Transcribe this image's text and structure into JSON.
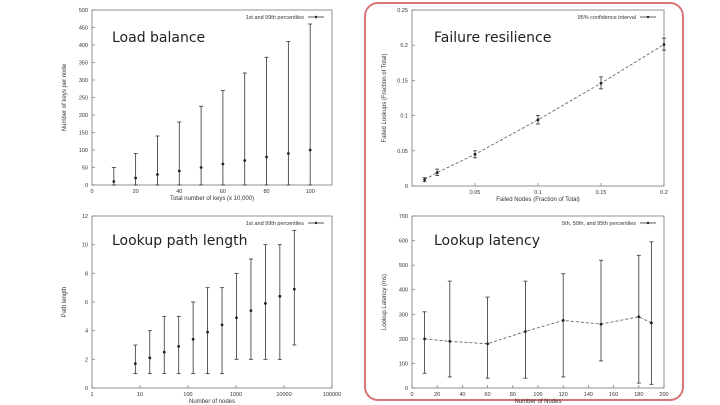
{
  "titles": {
    "load": "Load balance",
    "failure": "Failure resilience",
    "path": "Lookup path length",
    "latency": "Lookup latency"
  },
  "chart_data": [
    {
      "id": "load",
      "type": "scatter",
      "xlabel": "Total number of keys (x 10,000)",
      "ylabel": "Number of keys per node",
      "xlim": [
        0,
        110
      ],
      "ylim": [
        0,
        500
      ],
      "xticks": [
        0,
        20,
        40,
        60,
        80,
        100
      ],
      "yticks": [
        0,
        50,
        100,
        150,
        200,
        250,
        300,
        350,
        400,
        450,
        500
      ],
      "grid": false,
      "legend": "top-right",
      "series": [
        {
          "name": "1st and 99th percentiles",
          "x": [
            10,
            20,
            30,
            40,
            50,
            60,
            70,
            80,
            90,
            100
          ],
          "y": [
            10,
            20,
            30,
            40,
            50,
            60,
            70,
            80,
            90,
            100
          ],
          "low": [
            0,
            0,
            0,
            0,
            0,
            0,
            0,
            0,
            0,
            0
          ],
          "high": [
            50,
            90,
            140,
            180,
            225,
            270,
            320,
            365,
            410,
            460
          ]
        }
      ]
    },
    {
      "id": "failure",
      "type": "line",
      "xlabel": "Failed Nodes (Fraction of Total)",
      "ylabel": "Failed Lookups (Fraction of Total)",
      "xlim": [
        0,
        0.2
      ],
      "ylim": [
        0,
        0.25
      ],
      "xticks": [
        0.05,
        0.1,
        0.15,
        0.2
      ],
      "xtick_labels": [
        "0.05",
        "0.1",
        "0.15",
        "0.2"
      ],
      "yticks": [
        0,
        0.05,
        0.1,
        0.15,
        0.2,
        0.25
      ],
      "ytick_labels": [
        "0",
        "0.05",
        "0.1",
        "0.15",
        "0.2",
        "0.25"
      ],
      "grid": false,
      "legend": "top-right",
      "series": [
        {
          "name": "95% confidence interval",
          "x": [
            0.01,
            0.02,
            0.05,
            0.1,
            0.15,
            0.2
          ],
          "y": [
            0.009,
            0.019,
            0.045,
            0.094,
            0.146,
            0.201
          ],
          "low": [
            0.006,
            0.015,
            0.04,
            0.088,
            0.138,
            0.193
          ],
          "high": [
            0.012,
            0.024,
            0.05,
            0.1,
            0.155,
            0.21
          ]
        }
      ]
    },
    {
      "id": "path",
      "type": "scatter",
      "log_x": true,
      "xlabel": "Number of nodes",
      "ylabel": "Path length",
      "xlim": [
        1,
        100000
      ],
      "ylim": [
        0,
        12
      ],
      "xticks": [
        1,
        10,
        100,
        1000,
        10000,
        100000
      ],
      "xtick_labels": [
        "1",
        "10",
        "100",
        "1000",
        "10000",
        "100000"
      ],
      "yticks": [
        0,
        2,
        4,
        6,
        8,
        10,
        12
      ],
      "grid": false,
      "legend": "top-right",
      "series": [
        {
          "name": "1st and 99th percentiles",
          "x": [
            8,
            16,
            32,
            64,
            128,
            256,
            512,
            1024,
            2048,
            4096,
            8192,
            16384
          ],
          "y": [
            1.7,
            2.1,
            2.5,
            2.9,
            3.4,
            3.9,
            4.4,
            4.9,
            5.4,
            5.9,
            6.4,
            6.9
          ],
          "low": [
            1,
            1,
            1,
            1,
            1,
            1,
            1,
            2,
            2,
            2,
            2,
            3
          ],
          "high": [
            3,
            4,
            5,
            5,
            6,
            7,
            7,
            8,
            9,
            10,
            10,
            11
          ]
        }
      ]
    },
    {
      "id": "latency",
      "type": "line",
      "xlabel": "Number of Nodes",
      "ylabel": "Lookup Latency (ms)",
      "xlim": [
        0,
        200
      ],
      "ylim": [
        0,
        700
      ],
      "xticks": [
        0,
        20,
        40,
        60,
        80,
        100,
        120,
        140,
        160,
        180,
        200
      ],
      "yticks": [
        0,
        100,
        200,
        300,
        400,
        500,
        600,
        700
      ],
      "grid": false,
      "legend": "top-right",
      "series": [
        {
          "name": "5th, 50th, and 95th percentiles",
          "x": [
            10,
            30,
            60,
            90,
            120,
            150,
            180,
            190
          ],
          "y": [
            200,
            190,
            180,
            230,
            275,
            260,
            290,
            265
          ],
          "low": [
            60,
            45,
            40,
            40,
            45,
            110,
            20,
            15
          ],
          "high": [
            310,
            435,
            370,
            435,
            465,
            520,
            540,
            595
          ]
        }
      ]
    }
  ]
}
